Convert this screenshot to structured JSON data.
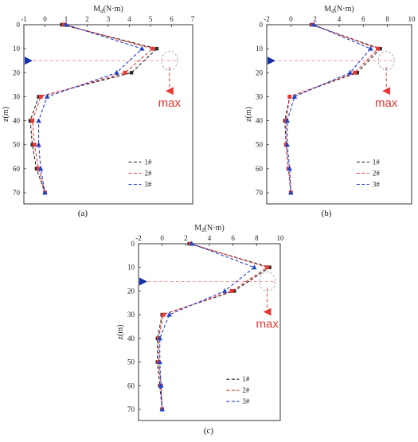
{
  "figure": {
    "captions": [
      "(a)",
      "(b)",
      "(c)"
    ]
  },
  "colors": {
    "s1": "#222222",
    "s2": "#e03a3a",
    "s3": "#2a3fd0",
    "marker_blue": "#1f45c8",
    "marker_red": "#e53935",
    "arrow_blue": "#1533a8",
    "arrow_red": "#e53935",
    "guide": "#ef8e8e",
    "ellipse": "#9e9e9e"
  },
  "chart_data": [
    {
      "type": "line",
      "caption": "(a)",
      "xlabel": "M",
      "xlabel_sub": "d",
      "xlabel_unit": "(N·m)",
      "ylabel": "z(m)",
      "xlim": [
        -1,
        7
      ],
      "ylim": [
        0,
        70
      ],
      "y_inverted": true,
      "xticks": [
        -1,
        0,
        1,
        2,
        3,
        4,
        5,
        6,
        7
      ],
      "yticks": [
        0,
        10,
        20,
        30,
        40,
        50,
        60,
        70
      ],
      "y": [
        0,
        10,
        20,
        30,
        40,
        50,
        60,
        70
      ],
      "series": [
        {
          "name": "1#",
          "values": [
            0.8,
            5.3,
            4.1,
            -0.3,
            -0.7,
            -0.6,
            -0.4,
            0.0
          ]
        },
        {
          "name": "2#",
          "values": [
            0.9,
            5.1,
            3.8,
            -0.2,
            -0.6,
            -0.5,
            -0.3,
            0.0
          ]
        },
        {
          "name": "3#",
          "values": [
            1.0,
            4.6,
            3.4,
            0.1,
            -0.3,
            -0.3,
            -0.2,
            0.0
          ]
        }
      ],
      "max_label": "max",
      "max_arrow_y": 15,
      "max_x": 5.9
    },
    {
      "type": "line",
      "caption": "(b)",
      "xlabel": "M",
      "xlabel_sub": "d",
      "xlabel_unit": "(N·m)",
      "ylabel": "z(m)",
      "xlim": [
        -2,
        10
      ],
      "ylim": [
        0,
        70
      ],
      "y_inverted": true,
      "xticks": [
        -2,
        0,
        2,
        4,
        6,
        8,
        10
      ],
      "yticks": [
        0,
        10,
        20,
        30,
        40,
        50,
        60,
        70
      ],
      "y": [
        0,
        10,
        20,
        30,
        40,
        50,
        60,
        70
      ],
      "series": [
        {
          "name": "1#",
          "values": [
            1.7,
            7.4,
            5.5,
            -0.1,
            -0.5,
            -0.4,
            -0.2,
            0.0
          ]
        },
        {
          "name": "2#",
          "values": [
            1.8,
            7.2,
            5.3,
            -0.1,
            -0.4,
            -0.4,
            -0.2,
            0.0
          ]
        },
        {
          "name": "3#",
          "values": [
            1.9,
            6.6,
            4.9,
            0.3,
            -0.3,
            -0.3,
            -0.1,
            0.0
          ]
        }
      ],
      "max_label": "max",
      "max_arrow_y": 15,
      "max_x": 7.9
    },
    {
      "type": "line",
      "caption": "(c)",
      "xlabel": "M",
      "xlabel_sub": "d",
      "xlabel_unit": "(N·m)",
      "ylabel": "z(m)",
      "xlim": [
        -2,
        10
      ],
      "ylim": [
        0,
        70
      ],
      "y_inverted": true,
      "xticks": [
        -2,
        0,
        2,
        4,
        6,
        8,
        10
      ],
      "yticks": [
        0,
        10,
        20,
        30,
        40,
        50,
        60,
        70
      ],
      "y": [
        0,
        10,
        20,
        30,
        40,
        50,
        60,
        70
      ],
      "series": [
        {
          "name": "1#",
          "values": [
            2.3,
            9.1,
            6.1,
            0.0,
            -0.4,
            -0.4,
            -0.2,
            0.0
          ]
        },
        {
          "name": "2#",
          "values": [
            2.4,
            8.9,
            5.9,
            0.1,
            -0.3,
            -0.3,
            -0.1,
            0.0
          ]
        },
        {
          "name": "3#",
          "values": [
            2.5,
            7.8,
            5.3,
            0.6,
            -0.2,
            -0.2,
            -0.1,
            0.0
          ]
        }
      ],
      "max_label": "max",
      "max_arrow_y": 16,
      "max_x": 8.9
    }
  ]
}
